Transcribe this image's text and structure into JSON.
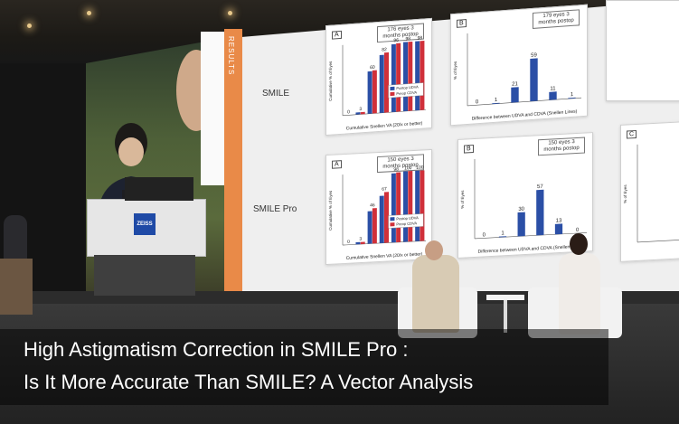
{
  "caption": {
    "line1": "High Astigmatism Correction in SMILE Pro :",
    "line2": "Is It More Accurate Than SMILE? A Vector Analysis"
  },
  "slide": {
    "section_label": "RESULTS",
    "row1_label": "SMILE",
    "row2_label": "SMILE Pro",
    "charts": [
      {
        "tag": "A",
        "note_line1": "176 eyes",
        "note_line2": "3 months postop",
        "xlabel": "Cumulative Snellen VA (20/x or better)",
        "ylabel": "Cumulative % of Eyes",
        "legend": [
          "Postop UDVA",
          "Preop CDVA"
        ],
        "values_a": [
          0,
          3,
          60,
          82,
          96,
          98,
          98
        ],
        "values_b": [
          0,
          3,
          61,
          85,
          97,
          98,
          98
        ]
      },
      {
        "tag": "B",
        "note_line1": "179 eyes",
        "note_line2": "3 months postop",
        "xlabel": "Difference between UDVA and CDVA (Snellen Lines)",
        "ylabel": "% of Eyes",
        "values": [
          0,
          1,
          21,
          59,
          11,
          1
        ]
      },
      {
        "tag": "A",
        "note_line1": "150 eyes",
        "note_line2": "3 months postop",
        "xlabel": "Cumulative Snellen VA (20/x or better)",
        "ylabel": "Cumulative % of Eyes",
        "legend": [
          "Postop UDVA",
          "Preop CDVA"
        ],
        "values_a": [
          0,
          3,
          46,
          67,
          98,
          100,
          100
        ],
        "values_b": [
          0,
          3,
          50,
          72,
          99,
          100,
          100
        ]
      },
      {
        "tag": "B",
        "note_line1": "150 eyes",
        "note_line2": "3 months postop",
        "xlabel": "Difference between UDVA and CDVA (Snellen Lines)",
        "ylabel": "% of Eyes",
        "values": [
          0,
          1,
          30,
          57,
          13,
          0
        ]
      },
      {
        "tag": "C",
        "note_line1": "",
        "note_line2": "",
        "xlabel": "",
        "ylabel": "% of Eyes",
        "values": []
      }
    ]
  },
  "podium_logo": "ZEISS",
  "colors": {
    "bar_blue": "#2b4fa6",
    "bar_red": "#d0303a",
    "accent_orange": "#e98a48",
    "caption_text": "#ffffff"
  }
}
